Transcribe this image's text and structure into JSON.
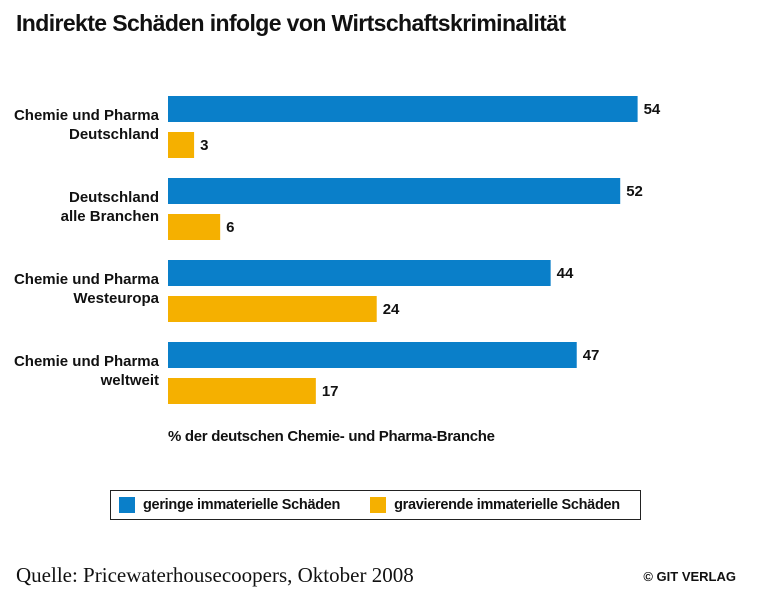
{
  "header": {
    "title": "Indirekte Schäden infolge von Wirtschaftskriminalität"
  },
  "chart_data": {
    "type": "bar",
    "orientation": "horizontal",
    "title": "Indirekte Schäden infolge von Wirtschaftskriminalität",
    "categories": [
      [
        "Chemie und Pharma",
        "Deutschland"
      ],
      [
        "Deutschland",
        "alle Branchen"
      ],
      [
        "Chemie und Pharma",
        "Westeuropa"
      ],
      [
        "Chemie und Pharma",
        "weltweit"
      ]
    ],
    "series": [
      {
        "name": "geringe immaterielle Schäden",
        "color": "#0a7fc9",
        "values": [
          54,
          52,
          44,
          47
        ]
      },
      {
        "name": "gravierende immaterielle Schäden",
        "color": "#f5b000",
        "values": [
          3,
          6,
          24,
          17
        ]
      }
    ],
    "xlabel": "% der deutschen Chemie- und Pharma-Branche",
    "xlim": [
      0,
      56
    ],
    "grid": false,
    "legend_position": "bottom",
    "data_labels": true
  },
  "footer": {
    "source": "Quelle: Pricewaterhousecoopers, Oktober 2008",
    "copyright": "© GIT VERLAG"
  }
}
